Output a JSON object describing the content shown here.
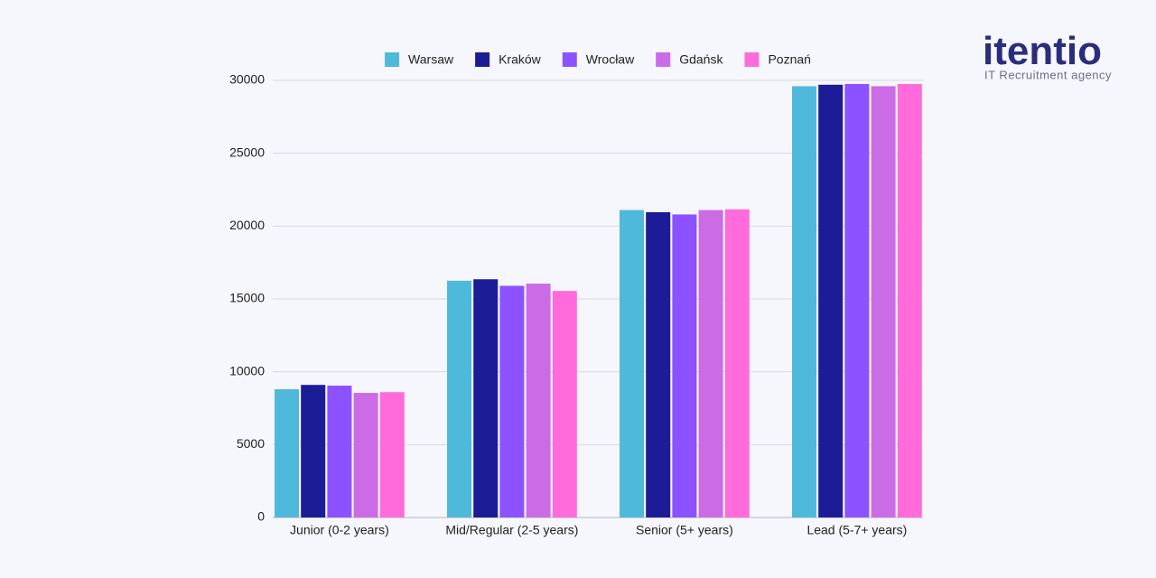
{
  "chart_data": {
    "type": "bar",
    "categories": [
      "Junior (0-2 years)",
      "Mid/Regular (2-5 years)",
      "Senior (5+ years)",
      "Lead (5-7+ years)"
    ],
    "series": [
      {
        "name": "Warsaw",
        "color": "#4fb9dc",
        "values": [
          8800,
          16250,
          21100,
          29600
        ]
      },
      {
        "name": "Kraków",
        "color": "#1c1c96",
        "values": [
          9100,
          16350,
          20950,
          29700
        ]
      },
      {
        "name": "Wrocław",
        "color": "#8c52ff",
        "values": [
          9050,
          15900,
          20800,
          29750
        ]
      },
      {
        "name": "Gdańsk",
        "color": "#cb6ce6",
        "values": [
          8550,
          16050,
          21100,
          29600
        ]
      },
      {
        "name": "Poznań",
        "color": "#ff6bdb",
        "values": [
          8600,
          15550,
          21150,
          29750
        ]
      }
    ],
    "ylim": [
      0,
      30000
    ],
    "yticks": [
      0,
      5000,
      10000,
      15000,
      20000,
      25000,
      30000
    ],
    "grid": true,
    "legend": "top"
  },
  "logo": {
    "name": "itentio",
    "tagline": "IT Recruitment agency"
  }
}
